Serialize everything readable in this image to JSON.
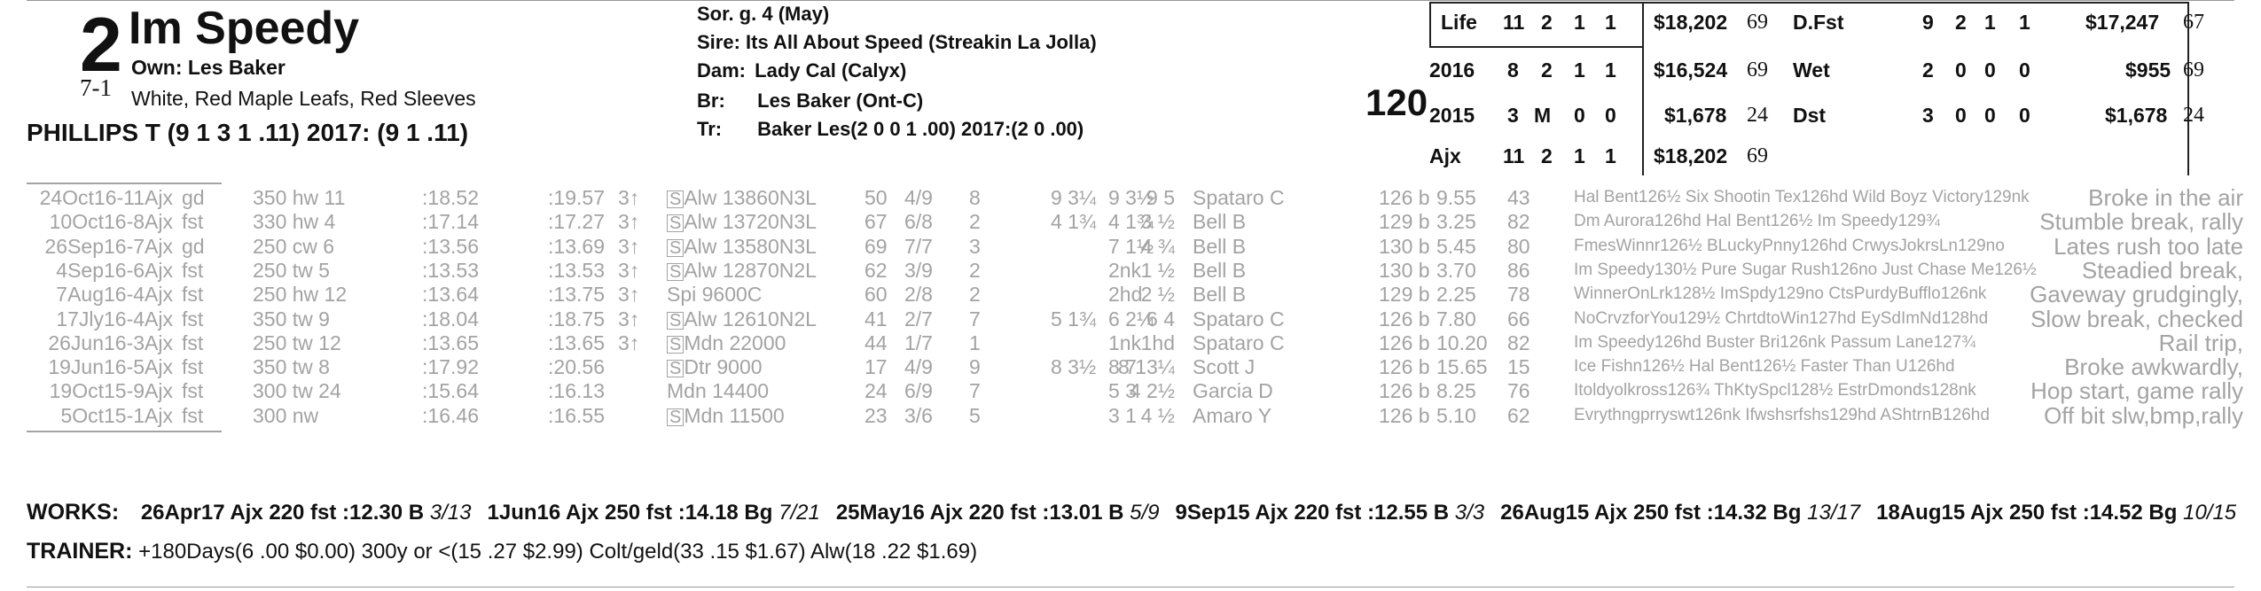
{
  "horse": {
    "program_number": "2",
    "morning_line": "7-1",
    "name": "Im Speedy",
    "owner": "Own: Les Baker",
    "silks": "White, Red Maple Leafs, Red Sleeves",
    "jockey": "PHILLIPS T (9 1 3 1 .11) 2017: (9 1 .11)",
    "weight": "120"
  },
  "pedigree": {
    "sex_age": "Sor. g. 4 (May)",
    "sire": "Sire: Its All About Speed (Streakin La Jolla)",
    "dam_label": "Dam:",
    "dam": "Lady Cal (Calyx)",
    "breeder_label": "Br:",
    "breeder": "Les Baker (Ont-C)",
    "trainer_label": "Tr:",
    "trainer": "Baker Les(2 0 0 1 .00)  2017:(2 0 .00)"
  },
  "stats_left": [
    {
      "label": "Life",
      "starts": "11",
      "w": "2",
      "p": "1",
      "s": "1",
      "earn": "$18,202",
      "spd": "69"
    },
    {
      "label": "2016",
      "starts": "8",
      "w": "2",
      "p": "1",
      "s": "1",
      "earn": "$16,524",
      "spd": "69"
    },
    {
      "label": "2015",
      "starts": "3",
      "w": "M",
      "p": "0",
      "s": "0",
      "earn": "$1,678",
      "spd": "24"
    },
    {
      "label": "Ajx",
      "starts": "11",
      "w": "2",
      "p": "1",
      "s": "1",
      "earn": "$18,202",
      "spd": "69"
    }
  ],
  "stats_right": [
    {
      "label": "D.Fst",
      "starts": "9",
      "w": "2",
      "p": "1",
      "s": "1",
      "earn": "$17,247",
      "spd": "67"
    },
    {
      "label": "Wet",
      "starts": "2",
      "w": "0",
      "p": "0",
      "s": "0",
      "earn": "$955",
      "spd": "69"
    },
    {
      "label": "Dst",
      "starts": "3",
      "w": "0",
      "p": "0",
      "s": "0",
      "earn": "$1,678",
      "spd": "24"
    }
  ],
  "past_performances": [
    {
      "date": "24Oct16-11Ajx",
      "cond": "gd",
      "dist": "350 hw 11",
      "f1": ":18.52",
      "f2": ":19.57",
      "age": "3↑",
      "s": "S",
      "race": "Alw 13860N3L",
      "beyer": "50",
      "pp": "4/9",
      "st": "8",
      "c1": "9 3¼",
      "c2": "9 3½",
      "fin": "9 5",
      "jockey": "Spataro C",
      "wt": "126 b",
      "odds": "9.55",
      "spd": "43",
      "comment": "Hal Bent126½ Six Shootin Tex126hd Wild Boyz Victory129nk",
      "note": "Broke in the air"
    },
    {
      "date": "10Oct16-8Ajx",
      "cond": "fst",
      "dist": "330 hw 4",
      "f1": ":17.14",
      "f2": ":17.27",
      "age": "3↑",
      "s": "S",
      "race": "Alw 13720N3L",
      "beyer": "67",
      "pp": "6/8",
      "st": "2",
      "c1": "4 1¾",
      "c2": "4 1¾",
      "fin": "3 ½",
      "jockey": "Bell B",
      "wt": "129 b",
      "odds": "3.25",
      "spd": "82",
      "comment": "Dm Aurora126hd Hal Bent126½ Im Speedy129¾",
      "note": "Stumble break, rally"
    },
    {
      "date": "26Sep16-7Ajx",
      "cond": "gd",
      "dist": "250 cw 6",
      "f1": ":13.56",
      "f2": ":13.69",
      "age": "3↑",
      "s": "S",
      "race": "Alw 13580N3L",
      "beyer": "69",
      "pp": "7/7",
      "st": "3",
      "c1": "",
      "c2": "7 1½",
      "fin": "4 ¾",
      "jockey": "Bell B",
      "wt": "130 b",
      "odds": "5.45",
      "spd": "80",
      "comment": "FmesWinnr126½ BLuckyPnny126hd CrwysJokrsLn129no",
      "note": "Lates rush too late"
    },
    {
      "date": "4Sep16-6Ajx",
      "cond": "fst",
      "dist": "250 tw 5",
      "f1": ":13.53",
      "f2": ":13.53",
      "age": "3↑",
      "s": "S",
      "race": "Alw 12870N2L",
      "beyer": "62",
      "pp": "3/9",
      "st": "2",
      "c1": "",
      "c2": "2nk",
      "fin": "1 ½",
      "jockey": "Bell B",
      "wt": "130 b",
      "odds": "3.70",
      "spd": "86",
      "comment": "Im Speedy130½ Pure Sugar Rush126no Just Chase Me126½",
      "note": "Steadied break,"
    },
    {
      "date": "7Aug16-4Ajx",
      "cond": "fst",
      "dist": "250 hw 12",
      "f1": ":13.64",
      "f2": ":13.75",
      "age": "3↑",
      "s": "",
      "race": "Spi 9600C",
      "beyer": "60",
      "pp": "2/8",
      "st": "2",
      "c1": "",
      "c2": "2hd",
      "fin": "2 ½",
      "jockey": "Bell B",
      "wt": "129 b",
      "odds": "2.25",
      "spd": "78",
      "comment": "WinnerOnLrk128½ ImSpdy129no CtsPurdyBufflo126nk",
      "note": "Gaveway grudgingly,"
    },
    {
      "date": "17Jly16-4Ajx",
      "cond": "fst",
      "dist": "350 tw 9",
      "f1": ":18.04",
      "f2": ":18.75",
      "age": "3↑",
      "s": "S",
      "race": "Alw 12610N2L",
      "beyer": "41",
      "pp": "2/7",
      "st": "7",
      "c1": "5 1¾",
      "c2": "6 2¼",
      "fin": "6 4",
      "jockey": "Spataro C",
      "wt": "126 b",
      "odds": "7.80",
      "spd": "66",
      "comment": "NoCrvzforYou129½ ChrtdtoWin127hd EySdImNd128hd",
      "note": "Slow break, checked"
    },
    {
      "date": "26Jun16-3Ajx",
      "cond": "fst",
      "dist": "250 tw 12",
      "f1": ":13.65",
      "f2": ":13.65",
      "age": "3↑",
      "s": "S",
      "race": "Mdn 22000",
      "beyer": "44",
      "pp": "1/7",
      "st": "1",
      "c1": "",
      "c2": "1nk",
      "fin": "1hd",
      "jockey": "Spataro C",
      "wt": "126 b",
      "odds": "10.20",
      "spd": "82",
      "comment": "Im Speedy126hd Buster Bri126nk Passum Lane127¾",
      "note": "Rail trip,"
    },
    {
      "date": "19Jun16-5Ajx",
      "cond": "fst",
      "dist": "350 tw 8",
      "f1": ":17.92",
      "f2": ":20.56",
      "age": "",
      "s": "S",
      "race": "Dtr 9000",
      "beyer": "17",
      "pp": "4/9",
      "st": "9",
      "c1": "8 3½",
      "c2": "8 7",
      "fin": "8 13¼",
      "jockey": "Scott J",
      "wt": "126 b",
      "odds": "15.65",
      "spd": "15",
      "comment": "Ice Fishn126½ Hal Bent126½ Faster Than U126hd",
      "note": "Broke awkwardly,"
    },
    {
      "date": "19Oct15-9Ajx",
      "cond": "fst",
      "dist": "300 tw 24",
      "f1": ":15.64",
      "f2": ":16.13",
      "age": "",
      "s": "",
      "race": "Mdn 14400",
      "beyer": "24",
      "pp": "6/9",
      "st": "7",
      "c1": "",
      "c2": "5 3",
      "fin": "4 2½",
      "jockey": "Garcia D",
      "wt": "126 b",
      "odds": "8.25",
      "spd": "76",
      "comment": "Itoldyolkross126¾ ThKtySpcl128½ EstrDmonds128nk",
      "note": "Hop start, game rally"
    },
    {
      "date": "5Oct15-1Ajx",
      "cond": "fst",
      "dist": "300 nw",
      "f1": ":16.46",
      "f2": ":16.55",
      "age": "",
      "s": "S",
      "race": "Mdn 11500",
      "beyer": "23",
      "pp": "3/6",
      "st": "5",
      "c1": "",
      "c2": "3 1",
      "fin": "4 ½",
      "jockey": "Amaro Y",
      "wt": "126 b",
      "odds": "5.10",
      "spd": "62",
      "comment": "Evrythngprryswt126nk Ifwshsrfshs129hd AShtrnB126hd",
      "note": "Off bit slw,bmp,rally"
    }
  ],
  "works": {
    "label": "WORKS:",
    "items": [
      {
        "date": "26Apr17",
        "trk": "Ajx",
        "dist": "220 fst",
        "time": ":12.30",
        "grade": "B",
        "rank": "3/13"
      },
      {
        "date": "1Jun16",
        "trk": "Ajx",
        "dist": "250 fst",
        "time": ":14.18",
        "grade": "Bg",
        "rank": "7/21"
      },
      {
        "date": "25May16",
        "trk": "Ajx",
        "dist": "220 fst",
        "time": ":13.01",
        "grade": "B",
        "rank": "5/9"
      },
      {
        "date": "9Sep15",
        "trk": "Ajx",
        "dist": "220 fst",
        "time": ":12.55",
        "grade": "B",
        "rank": "3/3"
      },
      {
        "date": "26Aug15",
        "trk": "Ajx",
        "dist": "250 fst",
        "time": ":14.32",
        "grade": "Bg",
        "rank": "13/17"
      },
      {
        "date": "18Aug15",
        "trk": "Ajx",
        "dist": "250 fst",
        "time": ":14.52",
        "grade": "Bg",
        "rank": "10/15"
      }
    ]
  },
  "trainer_stats": {
    "label": "TRAINER:",
    "text": "+180Days(6 .00 $0.00) 300y or <(15 .27 $2.99) Colt/geld(33 .15 $1.67) Alw(18 .22 $1.69)"
  }
}
